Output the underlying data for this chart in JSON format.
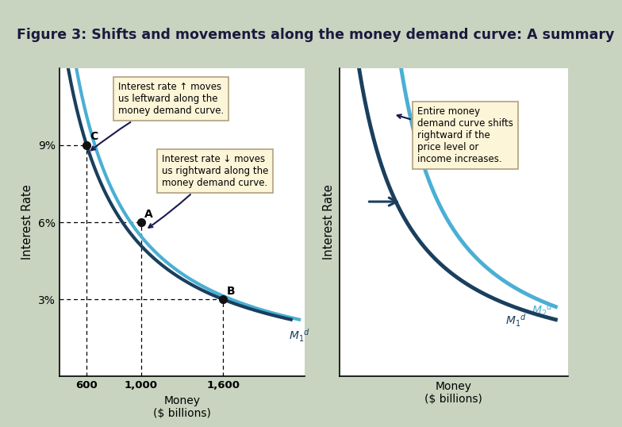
{
  "title": "Figure 3: Shifts and movements along the money demand curve: A summary",
  "title_bg": "#c8d8c0",
  "fig_bg": "#c8d4c0",
  "panel_bg": "#ffffff",
  "left_ylabel": "Interest Rate",
  "right_ylabel": "Interest Rate",
  "xlabel": "Money\n($ billions)",
  "yticks": [
    3,
    6,
    9
  ],
  "xticks_left": [
    600,
    1000,
    1600
  ],
  "xtick_labels_left": [
    "600",
    "1,000",
    "1,600"
  ],
  "curve_color_dark": "#1a3f5e",
  "curve_color_mid": "#2d6a8a",
  "curve_color_light": "#4aafd4",
  "point_A": [
    1000,
    6
  ],
  "point_B": [
    1600,
    3
  ],
  "point_C": [
    600,
    9
  ],
  "annotation_up_text": "Interest rate ↑ moves\nus leftward along the\nmoney demand curve.",
  "annotation_down_text": "Interest rate ↓ moves\nus rightward along the\nmoney demand curve.",
  "annotation_right_text": "Entire money\ndemand curve shifts\nrightward if the\nprice level or\nincome increases.",
  "box_facecolor": "#fdf5d8",
  "box_edgecolor": "#b0a080"
}
